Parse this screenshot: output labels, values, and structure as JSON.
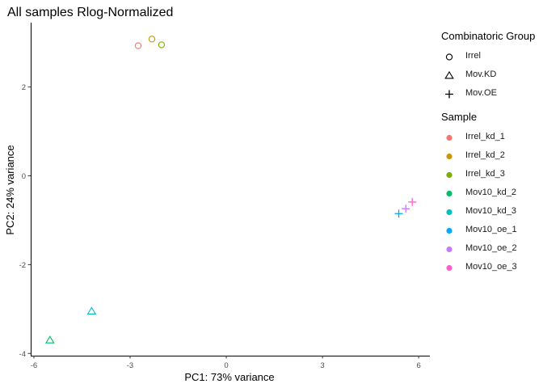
{
  "chart_data": {
    "type": "scatter",
    "title": "All samples Rlog-Normalized",
    "xlabel": "PC1: 73% variance",
    "ylabel": "PC2: 24% variance",
    "xlim": [
      -6.1,
      6.35
    ],
    "ylim": [
      -4.05,
      3.45
    ],
    "xticks": [
      -6,
      -3,
      0,
      3,
      6
    ],
    "xtick_labels": [
      "-6",
      "-3",
      "0",
      "3",
      "6"
    ],
    "yticks": [
      -4,
      -2,
      0,
      2
    ],
    "ytick_labels": [
      "-4",
      "-2",
      "0",
      "2"
    ],
    "grid": false,
    "legend_placement": "right",
    "shape_legend": {
      "title": "Combinatoric Group",
      "items": [
        {
          "label": "Irrel",
          "shape": "circle"
        },
        {
          "label": "Mov.KD",
          "shape": "triangle"
        },
        {
          "label": "Mov.OE",
          "shape": "plus"
        }
      ]
    },
    "color_legend": {
      "title": "Sample",
      "items": [
        {
          "label": "Irrel_kd_1",
          "color": "#F8766D"
        },
        {
          "label": "Irrel_kd_2",
          "color": "#CD9600"
        },
        {
          "label": "Irrel_kd_3",
          "color": "#7CAE00"
        },
        {
          "label": "Mov10_kd_2",
          "color": "#00BE67"
        },
        {
          "label": "Mov10_kd_3",
          "color": "#00BFC4"
        },
        {
          "label": "Mov10_oe_1",
          "color": "#00A9FF"
        },
        {
          "label": "Mov10_oe_2",
          "color": "#C77CFF"
        },
        {
          "label": "Mov10_oe_3",
          "color": "#FF61CC"
        }
      ]
    },
    "points": [
      {
        "sample": "Irrel_kd_1",
        "group": "Irrel",
        "x": -2.75,
        "y": 2.93
      },
      {
        "sample": "Irrel_kd_2",
        "group": "Irrel",
        "x": -2.32,
        "y": 3.08
      },
      {
        "sample": "Irrel_kd_3",
        "group": "Irrel",
        "x": -2.02,
        "y": 2.95
      },
      {
        "sample": "Mov10_kd_2",
        "group": "Mov.KD",
        "x": -5.5,
        "y": -3.7
      },
      {
        "sample": "Mov10_kd_3",
        "group": "Mov.KD",
        "x": -4.2,
        "y": -3.05
      },
      {
        "sample": "Mov10_oe_1",
        "group": "Mov.OE",
        "x": 5.38,
        "y": -0.85
      },
      {
        "sample": "Mov10_oe_2",
        "group": "Mov.OE",
        "x": 5.6,
        "y": -0.74
      },
      {
        "sample": "Mov10_oe_3",
        "group": "Mov.OE",
        "x": 5.8,
        "y": -0.59
      }
    ]
  }
}
